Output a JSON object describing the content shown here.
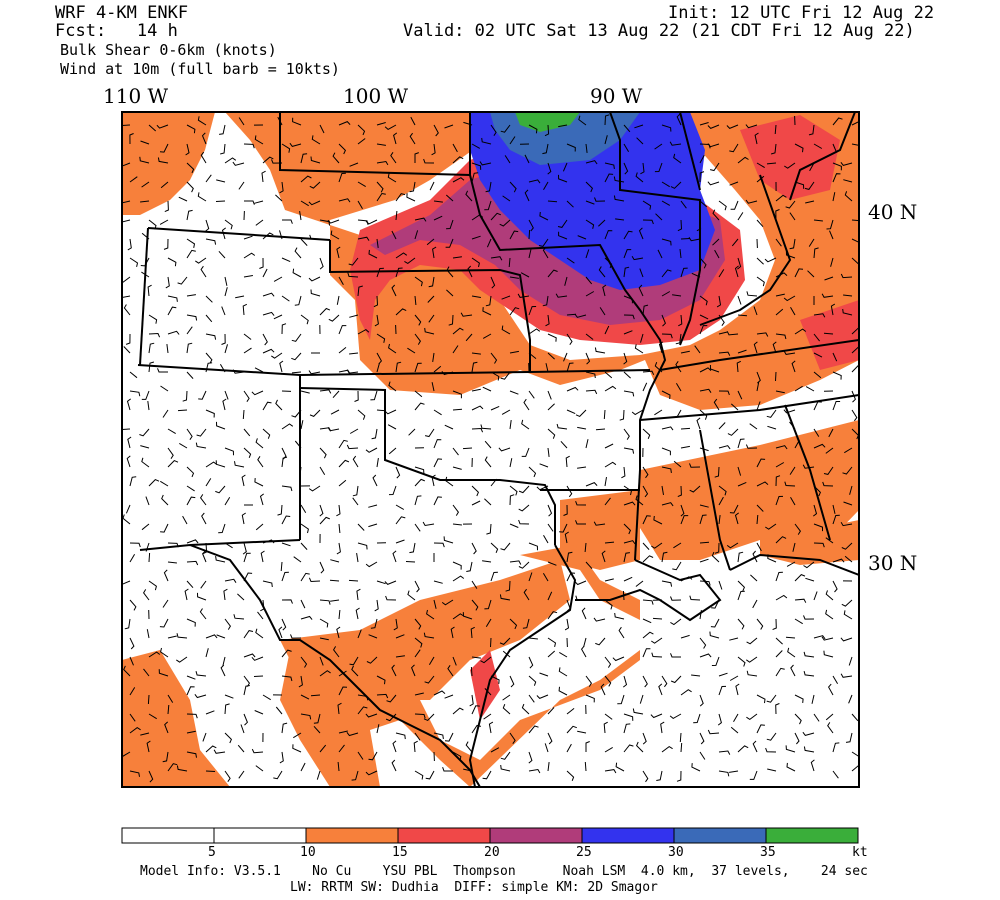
{
  "header": {
    "model": "WRF 4-KM ENKF",
    "fcst": "Fcst:   14 h",
    "init": "Init: 12 UTC Fri 12 Aug 22",
    "valid": "Valid: 02 UTC Sat 13 Aug 22 (21 CDT Fri 12 Aug 22)",
    "field1": "Bulk Shear 0-6km (knots)",
    "field2": "Wind at 10m (full barb = 10kts)"
  },
  "axes": {
    "lon_labels": [
      "110 W",
      "100 W",
      "90 W"
    ],
    "lat_labels": [
      "40 N",
      "30 N"
    ]
  },
  "colorbar": {
    "colors": [
      "#ffffff",
      "#ffffff",
      "#f7803b",
      "#f04848",
      "#b03c7a",
      "#3333ee",
      "#3a6ab8",
      "#3aae3a"
    ],
    "ticks": [
      "5",
      "10",
      "15",
      "20",
      "25",
      "30",
      "35",
      "kt"
    ]
  },
  "footer": {
    "line1": "Model Info: V3.5.1    No Cu    YSU PBL  Thompson      Noah LSM  4.0 km,  37 levels,    24 sec",
    "line2": "LW: RRTM SW: Dudhia  DIFF: simple KM: 2D Smagor"
  }
}
